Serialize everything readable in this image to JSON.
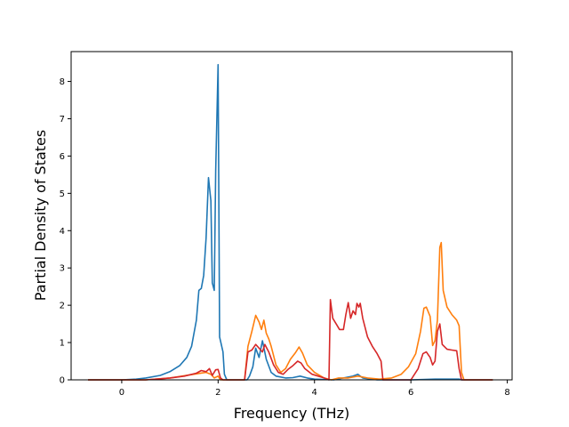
{
  "chart_data": {
    "type": "line",
    "title": "",
    "xlabel": "Frequency (THz)",
    "ylabel": "Partial Density of States",
    "xlim": [
      -1.05,
      8.1
    ],
    "ylim": [
      0,
      8.8
    ],
    "xticks": [
      0,
      2,
      4,
      6,
      8
    ],
    "yticks": [
      0,
      1,
      2,
      3,
      4,
      5,
      6,
      7,
      8
    ],
    "grid": false,
    "legend": "none",
    "series": [
      {
        "color": "#1f77b4",
        "points": [
          [
            -0.7,
            0
          ],
          [
            0.0,
            0.0
          ],
          [
            0.3,
            0.02
          ],
          [
            0.5,
            0.05
          ],
          [
            0.8,
            0.12
          ],
          [
            1.0,
            0.22
          ],
          [
            1.2,
            0.38
          ],
          [
            1.35,
            0.6
          ],
          [
            1.45,
            0.9
          ],
          [
            1.55,
            1.6
          ],
          [
            1.6,
            2.4
          ],
          [
            1.65,
            2.45
          ],
          [
            1.7,
            2.8
          ],
          [
            1.75,
            3.8
          ],
          [
            1.8,
            5.42
          ],
          [
            1.85,
            4.8
          ],
          [
            1.88,
            2.6
          ],
          [
            1.92,
            2.4
          ],
          [
            1.95,
            5.6
          ],
          [
            2.0,
            8.45
          ],
          [
            2.03,
            1.15
          ],
          [
            2.1,
            0.75
          ],
          [
            2.13,
            0.15
          ],
          [
            2.18,
            0
          ],
          [
            2.6,
            0
          ],
          [
            2.65,
            0.1
          ],
          [
            2.72,
            0.35
          ],
          [
            2.78,
            0.85
          ],
          [
            2.85,
            0.6
          ],
          [
            2.92,
            1.05
          ],
          [
            3.0,
            0.55
          ],
          [
            3.1,
            0.2
          ],
          [
            3.2,
            0.1
          ],
          [
            3.4,
            0.05
          ],
          [
            3.55,
            0.06
          ],
          [
            3.7,
            0.1
          ],
          [
            3.85,
            0.05
          ],
          [
            4.0,
            0.02
          ],
          [
            4.4,
            0.0
          ],
          [
            4.6,
            0.05
          ],
          [
            4.8,
            0.1
          ],
          [
            4.9,
            0.15
          ],
          [
            5.0,
            0.05
          ],
          [
            5.3,
            0.0
          ],
          [
            6.0,
            0.0
          ],
          [
            6.5,
            0.02
          ],
          [
            7.0,
            0.02
          ],
          [
            7.05,
            0
          ],
          [
            7.7,
            0
          ]
        ]
      },
      {
        "color": "#ff7f0e",
        "points": [
          [
            -0.7,
            0
          ],
          [
            0.5,
            0.0
          ],
          [
            1.0,
            0.05
          ],
          [
            1.5,
            0.15
          ],
          [
            1.75,
            0.2
          ],
          [
            1.85,
            0.15
          ],
          [
            1.92,
            0.05
          ],
          [
            2.0,
            0.1
          ],
          [
            2.05,
            0.0
          ],
          [
            2.55,
            0.0
          ],
          [
            2.62,
            0.9
          ],
          [
            2.7,
            1.3
          ],
          [
            2.78,
            1.73
          ],
          [
            2.85,
            1.55
          ],
          [
            2.9,
            1.35
          ],
          [
            2.95,
            1.6
          ],
          [
            3.0,
            1.25
          ],
          [
            3.05,
            1.1
          ],
          [
            3.1,
            0.9
          ],
          [
            3.2,
            0.4
          ],
          [
            3.3,
            0.2
          ],
          [
            3.4,
            0.3
          ],
          [
            3.5,
            0.55
          ],
          [
            3.6,
            0.72
          ],
          [
            3.68,
            0.88
          ],
          [
            3.75,
            0.72
          ],
          [
            3.85,
            0.4
          ],
          [
            4.0,
            0.2
          ],
          [
            4.2,
            0.05
          ],
          [
            4.35,
            0.0
          ],
          [
            4.5,
            0.05
          ],
          [
            4.7,
            0.05
          ],
          [
            4.9,
            0.1
          ],
          [
            5.1,
            0.05
          ],
          [
            5.35,
            0.02
          ],
          [
            5.6,
            0.05
          ],
          [
            5.8,
            0.15
          ],
          [
            5.95,
            0.35
          ],
          [
            6.1,
            0.7
          ],
          [
            6.2,
            1.3
          ],
          [
            6.27,
            1.92
          ],
          [
            6.32,
            1.95
          ],
          [
            6.4,
            1.7
          ],
          [
            6.45,
            0.92
          ],
          [
            6.5,
            1.05
          ],
          [
            6.55,
            1.6
          ],
          [
            6.6,
            3.55
          ],
          [
            6.63,
            3.68
          ],
          [
            6.67,
            2.4
          ],
          [
            6.75,
            1.95
          ],
          [
            6.85,
            1.75
          ],
          [
            6.95,
            1.6
          ],
          [
            7.0,
            1.45
          ],
          [
            7.05,
            0.2
          ],
          [
            7.1,
            0.0
          ],
          [
            7.7,
            0
          ]
        ]
      },
      {
        "color": "#d62728",
        "points": [
          [
            -0.7,
            0
          ],
          [
            0.5,
            0.0
          ],
          [
            1.0,
            0.05
          ],
          [
            1.3,
            0.1
          ],
          [
            1.55,
            0.18
          ],
          [
            1.65,
            0.25
          ],
          [
            1.75,
            0.22
          ],
          [
            1.82,
            0.3
          ],
          [
            1.88,
            0.12
          ],
          [
            1.95,
            0.27
          ],
          [
            2.0,
            0.28
          ],
          [
            2.05,
            0.05
          ],
          [
            2.1,
            0.0
          ],
          [
            2.55,
            0.0
          ],
          [
            2.62,
            0.75
          ],
          [
            2.7,
            0.8
          ],
          [
            2.78,
            0.95
          ],
          [
            2.85,
            0.85
          ],
          [
            2.92,
            0.75
          ],
          [
            2.97,
            0.95
          ],
          [
            3.05,
            0.75
          ],
          [
            3.15,
            0.4
          ],
          [
            3.25,
            0.2
          ],
          [
            3.35,
            0.15
          ],
          [
            3.45,
            0.28
          ],
          [
            3.55,
            0.38
          ],
          [
            3.65,
            0.5
          ],
          [
            3.72,
            0.45
          ],
          [
            3.8,
            0.3
          ],
          [
            3.95,
            0.15
          ],
          [
            4.2,
            0.05
          ],
          [
            4.3,
            0.0
          ],
          [
            4.33,
            2.15
          ],
          [
            4.38,
            1.65
          ],
          [
            4.45,
            1.5
          ],
          [
            4.52,
            1.35
          ],
          [
            4.6,
            1.35
          ],
          [
            4.65,
            1.75
          ],
          [
            4.7,
            2.07
          ],
          [
            4.75,
            1.65
          ],
          [
            4.8,
            1.85
          ],
          [
            4.85,
            1.75
          ],
          [
            4.88,
            2.05
          ],
          [
            4.92,
            1.95
          ],
          [
            4.95,
            2.05
          ],
          [
            5.0,
            1.65
          ],
          [
            5.1,
            1.15
          ],
          [
            5.2,
            0.9
          ],
          [
            5.3,
            0.7
          ],
          [
            5.38,
            0.5
          ],
          [
            5.42,
            0.0
          ],
          [
            6.0,
            0.0
          ],
          [
            6.15,
            0.3
          ],
          [
            6.25,
            0.7
          ],
          [
            6.32,
            0.75
          ],
          [
            6.4,
            0.6
          ],
          [
            6.45,
            0.4
          ],
          [
            6.5,
            0.5
          ],
          [
            6.55,
            1.3
          ],
          [
            6.6,
            1.5
          ],
          [
            6.65,
            0.95
          ],
          [
            6.75,
            0.82
          ],
          [
            6.85,
            0.8
          ],
          [
            6.95,
            0.78
          ],
          [
            7.0,
            0.3
          ],
          [
            7.05,
            0.0
          ],
          [
            7.7,
            0
          ]
        ]
      }
    ]
  }
}
